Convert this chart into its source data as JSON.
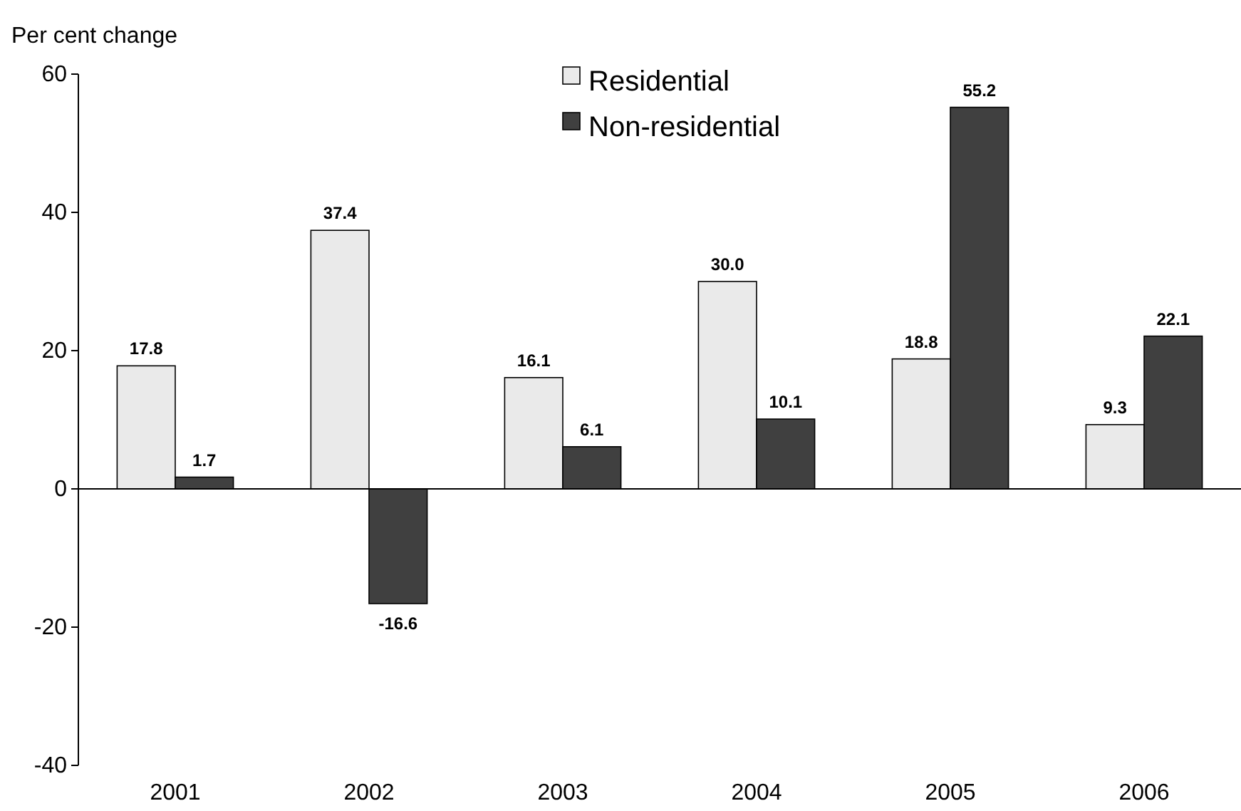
{
  "chart_data": {
    "type": "bar",
    "ylabel": "Per cent change",
    "categories": [
      "2001",
      "2002",
      "2003",
      "2004",
      "2005",
      "2006"
    ],
    "series": [
      {
        "name": "Residential",
        "color": "#eaeaea",
        "values": [
          17.8,
          37.4,
          16.1,
          30.0,
          18.8,
          9.3
        ],
        "value_labels": [
          "17.8",
          "37.4",
          "16.1",
          "30.0",
          "18.8",
          "9.3"
        ]
      },
      {
        "name": "Non-residential",
        "color": "#404040",
        "values": [
          1.7,
          -16.6,
          6.1,
          10.1,
          55.2,
          22.1
        ],
        "value_labels": [
          "1.7",
          "-16.6",
          "6.1",
          "10.1",
          "55.2",
          "22.1"
        ]
      }
    ],
    "ylim": [
      -40,
      60
    ],
    "yticks": [
      -40,
      -20,
      0,
      20,
      40,
      60
    ],
    "legend": "top"
  }
}
